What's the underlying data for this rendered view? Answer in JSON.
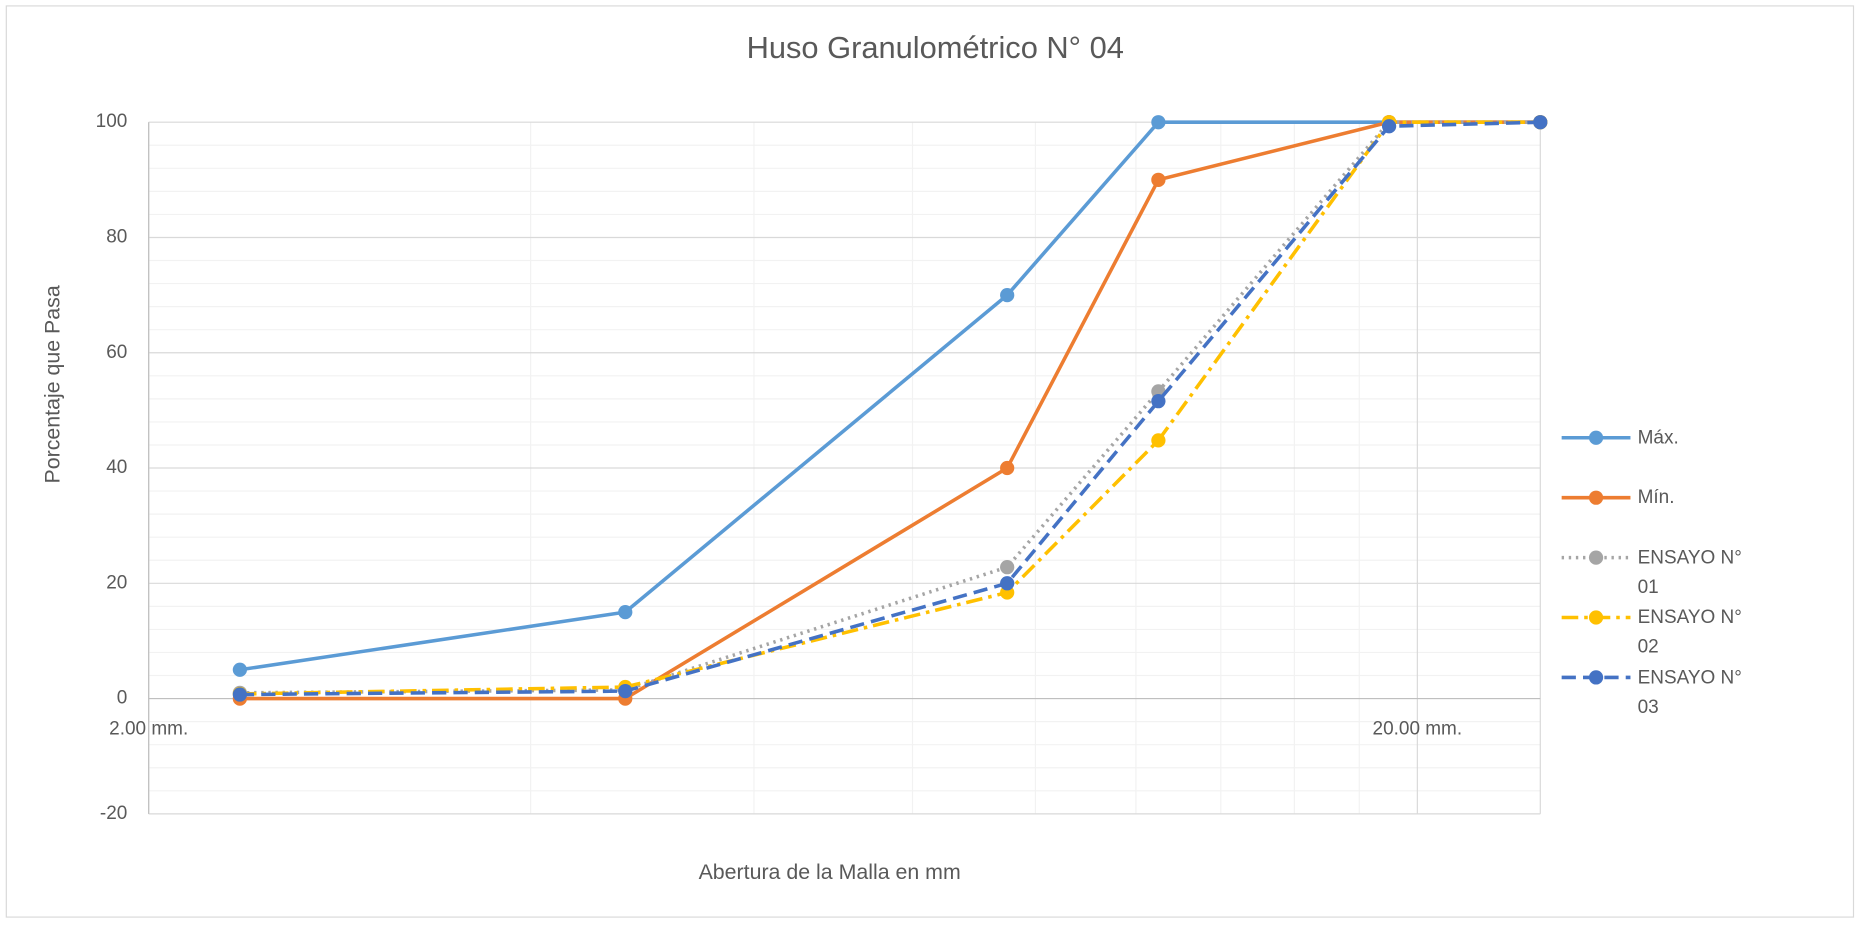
{
  "chart_data": {
    "type": "line",
    "title": "Huso Granulométrico N° 04",
    "x_label": "Abertura de la Malla en mm",
    "y_label": "Porcentaje que Pasa",
    "x": [
      2.36,
      4.75,
      9.5,
      12.5,
      19,
      25
    ],
    "xlog": true,
    "xlim": [
      2,
      25
    ],
    "xticks": [
      {
        "value": 2,
        "label": "2.00 mm."
      },
      {
        "value": 20,
        "label": "20.00 mm."
      }
    ],
    "xminorticks": [
      4,
      6,
      8,
      10,
      12,
      14,
      16,
      18
    ],
    "ylim": [
      -20,
      100
    ],
    "yticks": [
      -20,
      0,
      20,
      40,
      60,
      80,
      100
    ],
    "yminorticks": [
      -16,
      -12,
      -8,
      -4,
      4,
      8,
      12,
      16,
      24,
      28,
      32,
      36,
      44,
      48,
      52,
      56,
      64,
      68,
      72,
      76,
      84,
      88,
      92,
      96
    ],
    "grid": true,
    "legend": "right",
    "series": [
      {
        "name": "Máx.",
        "color": "#5b9bd5",
        "dash": "solid",
        "values": [
          5,
          15,
          70,
          100,
          100,
          100
        ]
      },
      {
        "name": "Mín.",
        "color": "#ed7d31",
        "dash": "solid",
        "values": [
          0,
          0,
          40,
          90,
          100,
          100
        ]
      },
      {
        "name": "ENSAYO N° 01",
        "color": "#a5a5a5",
        "dash": "dot",
        "values": [
          1,
          1.5,
          22.8,
          53.3,
          100,
          100
        ]
      },
      {
        "name": "ENSAYO N° 02",
        "color": "#ffc000",
        "dash": "dashdot",
        "values": [
          0.8,
          2,
          18.4,
          44.8,
          100,
          100
        ]
      },
      {
        "name": "ENSAYO N° 03",
        "color": "#4472c4",
        "dash": "dash",
        "values": [
          0.7,
          1.3,
          20,
          51.6,
          99.3,
          100
        ]
      }
    ]
  }
}
